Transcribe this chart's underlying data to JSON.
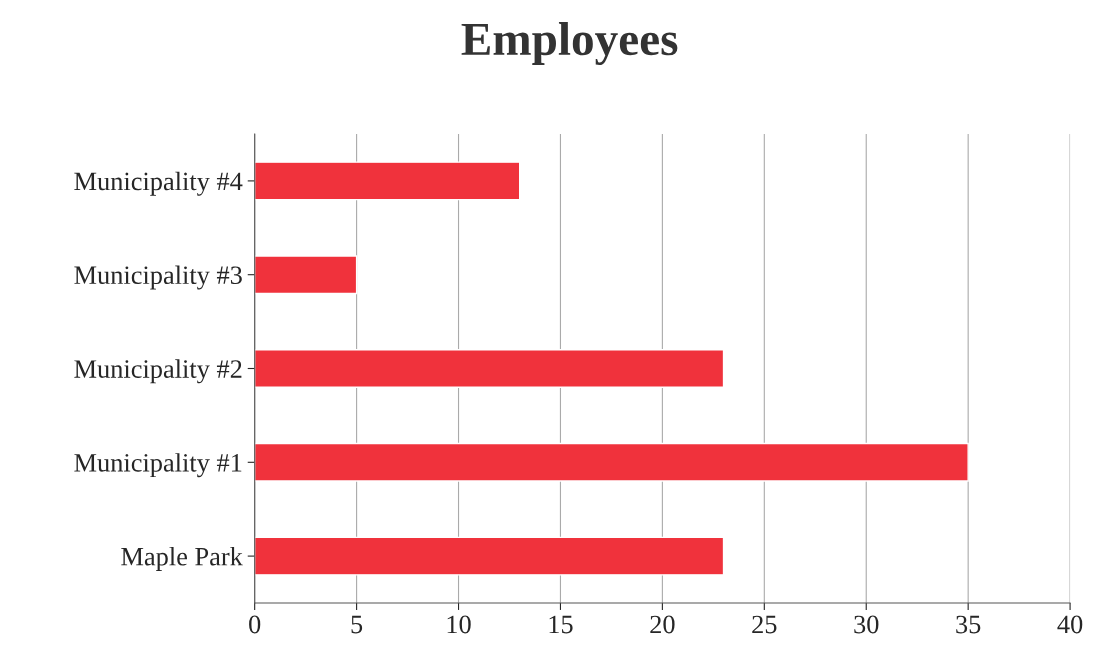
{
  "chart_data": {
    "type": "bar",
    "orientation": "horizontal",
    "title": "Employees",
    "categories": [
      "Municipality #4",
      "Municipality #3",
      "Municipality #2",
      "Municipality #1",
      "Maple Park"
    ],
    "values": [
      13,
      5,
      23,
      35,
      23
    ],
    "color": "#f0323c",
    "xlim": [
      0,
      40
    ],
    "xticks": [
      0,
      5,
      10,
      15,
      20,
      25,
      30,
      35,
      40
    ],
    "grid": "x",
    "legend": false
  }
}
